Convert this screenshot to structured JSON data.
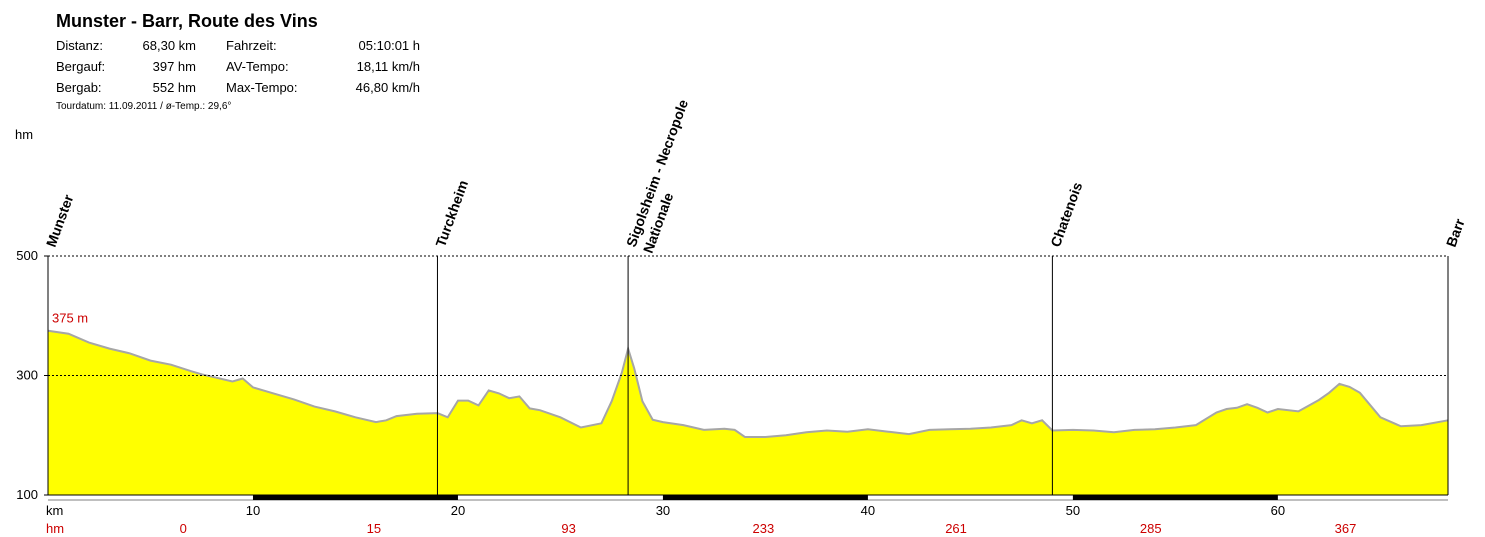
{
  "header": {
    "title": "Munster - Barr, Route des Vins",
    "stats": [
      {
        "label1": "Distanz:",
        "value1": "68,30 km",
        "label2": "Fahrzeit:",
        "value2": "05:10:01 h"
      },
      {
        "label1": "Bergauf:",
        "value1": "397 hm",
        "label2": "AV-Tempo:",
        "value2": "18,11 km/h"
      },
      {
        "label1": "Bergab:",
        "value1": "552 hm",
        "label2": "Max-Tempo:",
        "value2": "46,80 km/h"
      }
    ],
    "meta": "Tourdatum: 11.09.2011  /  ø-Temp.: 29,6°"
  },
  "colors": {
    "fill": "#ffff00",
    "outline": "#a6a6a6",
    "accent_red": "#cc0000",
    "axis": "#000000"
  },
  "chart_data": {
    "type": "area",
    "ylabel": "hm",
    "xlabel": "km",
    "ylim": [
      100,
      500
    ],
    "xlim": [
      0,
      68.3
    ],
    "yticks": [
      100,
      300,
      500
    ],
    "xticks": [
      10,
      20,
      30,
      40,
      50,
      60
    ],
    "gridlines": [
      300,
      500
    ],
    "start_label": "375 m",
    "hm_row_label": "hm",
    "cumulative_climb": [
      {
        "x": 6.6,
        "value": "0"
      },
      {
        "x": 15.9,
        "value": "15"
      },
      {
        "x": 25.4,
        "value": "93"
      },
      {
        "x": 34.9,
        "value": "233"
      },
      {
        "x": 44.3,
        "value": "261"
      },
      {
        "x": 53.8,
        "value": "285"
      },
      {
        "x": 63.3,
        "value": "367"
      }
    ],
    "waypoints": [
      {
        "name": "Munster",
        "x": 0
      },
      {
        "name": "Turckheim",
        "x": 19.0
      },
      {
        "name": "Sigolsheim - Necropole Nationale",
        "x": 28.3
      },
      {
        "name": "Chatenois",
        "x": 49.0
      },
      {
        "name": "Barr",
        "x": 68.3
      }
    ],
    "series": [
      {
        "x": [
          0,
          1,
          2,
          3,
          4,
          5,
          6,
          7,
          7.5,
          8,
          9,
          9.5,
          10,
          11,
          12,
          13,
          14,
          15,
          16,
          16.5,
          17,
          18,
          19,
          19.5,
          20,
          20.5,
          21,
          21.5,
          22,
          22.5,
          23,
          23.5,
          24,
          25,
          26,
          27,
          27.5,
          28,
          28.3,
          28.6,
          29,
          29.5,
          30,
          31,
          32,
          33,
          33.5,
          34,
          35,
          36,
          37,
          38,
          39,
          40,
          41,
          42,
          43,
          44,
          45,
          46,
          47,
          47.5,
          48,
          48.5,
          49,
          50,
          51,
          52,
          53,
          54,
          55,
          56,
          57,
          57.5,
          58,
          58.5,
          59,
          59.5,
          60,
          61,
          62,
          62.5,
          63,
          63.5,
          64,
          65,
          66,
          67,
          68.3
        ],
        "y": [
          375,
          370,
          355,
          345,
          337,
          325,
          318,
          307,
          302,
          298,
          290,
          295,
          280,
          270,
          260,
          248,
          240,
          230,
          222,
          225,
          232,
          236,
          237,
          230,
          258,
          258,
          250,
          275,
          270,
          262,
          265,
          245,
          242,
          230,
          213,
          220,
          257,
          305,
          345,
          312,
          257,
          226,
          222,
          217,
          209,
          211,
          209,
          197,
          197,
          200,
          205,
          208,
          206,
          210,
          206,
          202,
          209,
          210,
          211,
          213,
          217,
          225,
          220,
          225,
          208,
          209,
          208,
          205,
          209,
          210,
          213,
          217,
          238,
          244,
          246,
          252,
          246,
          238,
          244,
          240,
          259,
          271,
          286,
          281,
          271,
          230,
          215,
          217,
          225
        ]
      }
    ]
  }
}
